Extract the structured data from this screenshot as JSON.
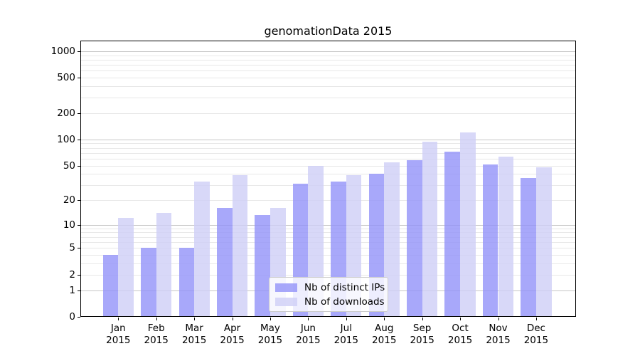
{
  "chart_data": {
    "type": "bar",
    "title": "genomationData 2015",
    "year": "2015",
    "months": [
      "Jan",
      "Feb",
      "Mar",
      "Apr",
      "May",
      "Jun",
      "Jul",
      "Aug",
      "Sep",
      "Oct",
      "Nov",
      "Dec"
    ],
    "categories": [
      "Jan 2015",
      "Feb 2015",
      "Mar 2015",
      "Apr 2015",
      "May 2015",
      "Jun 2015",
      "Jul 2015",
      "Aug 2015",
      "Sep 2015",
      "Oct 2015",
      "Nov 2015",
      "Dec 2015"
    ],
    "series": [
      {
        "name": "Nb of distinct IPs",
        "color": "#9292f9",
        "values": [
          4,
          5,
          5,
          16,
          13,
          31,
          33,
          40,
          58,
          72,
          52,
          36
        ]
      },
      {
        "name": "Nb of downloads",
        "color": "#cecef6",
        "values": [
          12,
          14,
          33,
          39,
          16,
          50,
          39,
          55,
          94,
          119,
          64,
          48
        ]
      }
    ],
    "bar_alpha": 0.8,
    "y_scale": "log10(1+v)",
    "y_ticks": [
      0,
      1,
      2,
      5,
      10,
      20,
      50,
      100,
      200,
      500,
      1000
    ],
    "y_major_gridlines": [
      1,
      10,
      100,
      1000
    ],
    "y_minor_gridlines": [
      2,
      3,
      4,
      5,
      6,
      7,
      8,
      9,
      20,
      30,
      40,
      50,
      60,
      70,
      80,
      90,
      200,
      300,
      400,
      500,
      600,
      700,
      800,
      900
    ],
    "ylim": [
      0,
      1320
    ],
    "grid": "on",
    "legend_position": "lower center",
    "colors": {
      "grid_major": "#c6c6c6",
      "grid_minor": "#e8e8e8",
      "spine": "#000000",
      "legend_border": "#cccccc",
      "legend_background": "#ffffff"
    }
  }
}
